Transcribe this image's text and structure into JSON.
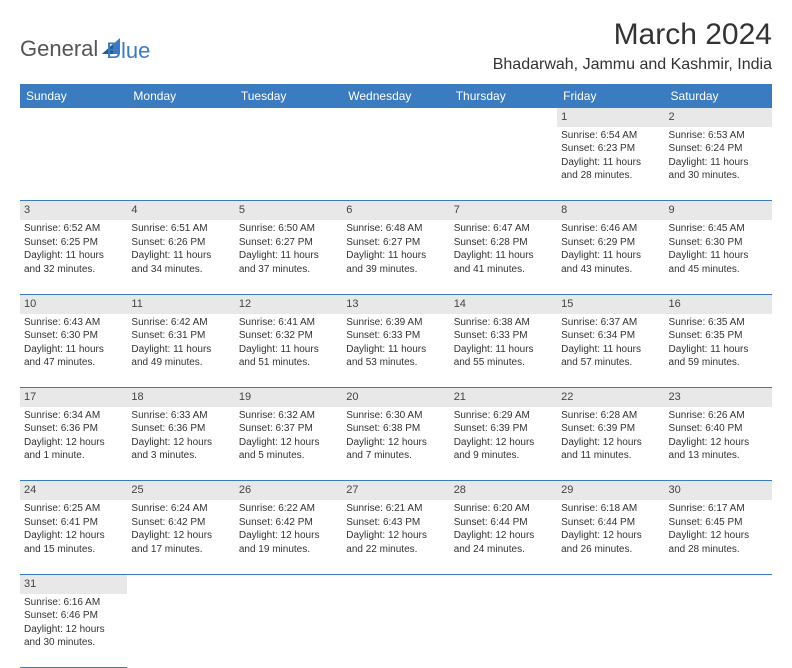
{
  "logo": {
    "text1": "General",
    "text2": "Blue"
  },
  "title": "March 2024",
  "location": "Bhadarwah, Jammu and Kashmir, India",
  "colors": {
    "headerBg": "#3b7bbf",
    "headerText": "#ffffff",
    "dayNumBg": "#e8e8e8",
    "rowBorder": "#3b7bbf",
    "bodyText": "#333333"
  },
  "dayHeaders": [
    "Sunday",
    "Monday",
    "Tuesday",
    "Wednesday",
    "Thursday",
    "Friday",
    "Saturday"
  ],
  "weeks": [
    [
      null,
      null,
      null,
      null,
      null,
      {
        "n": "1",
        "sr": "Sunrise: 6:54 AM",
        "ss": "Sunset: 6:23 PM",
        "d1": "Daylight: 11 hours",
        "d2": "and 28 minutes."
      },
      {
        "n": "2",
        "sr": "Sunrise: 6:53 AM",
        "ss": "Sunset: 6:24 PM",
        "d1": "Daylight: 11 hours",
        "d2": "and 30 minutes."
      }
    ],
    [
      {
        "n": "3",
        "sr": "Sunrise: 6:52 AM",
        "ss": "Sunset: 6:25 PM",
        "d1": "Daylight: 11 hours",
        "d2": "and 32 minutes."
      },
      {
        "n": "4",
        "sr": "Sunrise: 6:51 AM",
        "ss": "Sunset: 6:26 PM",
        "d1": "Daylight: 11 hours",
        "d2": "and 34 minutes."
      },
      {
        "n": "5",
        "sr": "Sunrise: 6:50 AM",
        "ss": "Sunset: 6:27 PM",
        "d1": "Daylight: 11 hours",
        "d2": "and 37 minutes."
      },
      {
        "n": "6",
        "sr": "Sunrise: 6:48 AM",
        "ss": "Sunset: 6:27 PM",
        "d1": "Daylight: 11 hours",
        "d2": "and 39 minutes."
      },
      {
        "n": "7",
        "sr": "Sunrise: 6:47 AM",
        "ss": "Sunset: 6:28 PM",
        "d1": "Daylight: 11 hours",
        "d2": "and 41 minutes."
      },
      {
        "n": "8",
        "sr": "Sunrise: 6:46 AM",
        "ss": "Sunset: 6:29 PM",
        "d1": "Daylight: 11 hours",
        "d2": "and 43 minutes."
      },
      {
        "n": "9",
        "sr": "Sunrise: 6:45 AM",
        "ss": "Sunset: 6:30 PM",
        "d1": "Daylight: 11 hours",
        "d2": "and 45 minutes."
      }
    ],
    [
      {
        "n": "10",
        "sr": "Sunrise: 6:43 AM",
        "ss": "Sunset: 6:30 PM",
        "d1": "Daylight: 11 hours",
        "d2": "and 47 minutes."
      },
      {
        "n": "11",
        "sr": "Sunrise: 6:42 AM",
        "ss": "Sunset: 6:31 PM",
        "d1": "Daylight: 11 hours",
        "d2": "and 49 minutes."
      },
      {
        "n": "12",
        "sr": "Sunrise: 6:41 AM",
        "ss": "Sunset: 6:32 PM",
        "d1": "Daylight: 11 hours",
        "d2": "and 51 minutes."
      },
      {
        "n": "13",
        "sr": "Sunrise: 6:39 AM",
        "ss": "Sunset: 6:33 PM",
        "d1": "Daylight: 11 hours",
        "d2": "and 53 minutes."
      },
      {
        "n": "14",
        "sr": "Sunrise: 6:38 AM",
        "ss": "Sunset: 6:33 PM",
        "d1": "Daylight: 11 hours",
        "d2": "and 55 minutes."
      },
      {
        "n": "15",
        "sr": "Sunrise: 6:37 AM",
        "ss": "Sunset: 6:34 PM",
        "d1": "Daylight: 11 hours",
        "d2": "and 57 minutes."
      },
      {
        "n": "16",
        "sr": "Sunrise: 6:35 AM",
        "ss": "Sunset: 6:35 PM",
        "d1": "Daylight: 11 hours",
        "d2": "and 59 minutes."
      }
    ],
    [
      {
        "n": "17",
        "sr": "Sunrise: 6:34 AM",
        "ss": "Sunset: 6:36 PM",
        "d1": "Daylight: 12 hours",
        "d2": "and 1 minute."
      },
      {
        "n": "18",
        "sr": "Sunrise: 6:33 AM",
        "ss": "Sunset: 6:36 PM",
        "d1": "Daylight: 12 hours",
        "d2": "and 3 minutes."
      },
      {
        "n": "19",
        "sr": "Sunrise: 6:32 AM",
        "ss": "Sunset: 6:37 PM",
        "d1": "Daylight: 12 hours",
        "d2": "and 5 minutes."
      },
      {
        "n": "20",
        "sr": "Sunrise: 6:30 AM",
        "ss": "Sunset: 6:38 PM",
        "d1": "Daylight: 12 hours",
        "d2": "and 7 minutes."
      },
      {
        "n": "21",
        "sr": "Sunrise: 6:29 AM",
        "ss": "Sunset: 6:39 PM",
        "d1": "Daylight: 12 hours",
        "d2": "and 9 minutes."
      },
      {
        "n": "22",
        "sr": "Sunrise: 6:28 AM",
        "ss": "Sunset: 6:39 PM",
        "d1": "Daylight: 12 hours",
        "d2": "and 11 minutes."
      },
      {
        "n": "23",
        "sr": "Sunrise: 6:26 AM",
        "ss": "Sunset: 6:40 PM",
        "d1": "Daylight: 12 hours",
        "d2": "and 13 minutes."
      }
    ],
    [
      {
        "n": "24",
        "sr": "Sunrise: 6:25 AM",
        "ss": "Sunset: 6:41 PM",
        "d1": "Daylight: 12 hours",
        "d2": "and 15 minutes."
      },
      {
        "n": "25",
        "sr": "Sunrise: 6:24 AM",
        "ss": "Sunset: 6:42 PM",
        "d1": "Daylight: 12 hours",
        "d2": "and 17 minutes."
      },
      {
        "n": "26",
        "sr": "Sunrise: 6:22 AM",
        "ss": "Sunset: 6:42 PM",
        "d1": "Daylight: 12 hours",
        "d2": "and 19 minutes."
      },
      {
        "n": "27",
        "sr": "Sunrise: 6:21 AM",
        "ss": "Sunset: 6:43 PM",
        "d1": "Daylight: 12 hours",
        "d2": "and 22 minutes."
      },
      {
        "n": "28",
        "sr": "Sunrise: 6:20 AM",
        "ss": "Sunset: 6:44 PM",
        "d1": "Daylight: 12 hours",
        "d2": "and 24 minutes."
      },
      {
        "n": "29",
        "sr": "Sunrise: 6:18 AM",
        "ss": "Sunset: 6:44 PM",
        "d1": "Daylight: 12 hours",
        "d2": "and 26 minutes."
      },
      {
        "n": "30",
        "sr": "Sunrise: 6:17 AM",
        "ss": "Sunset: 6:45 PM",
        "d1": "Daylight: 12 hours",
        "d2": "and 28 minutes."
      }
    ],
    [
      {
        "n": "31",
        "sr": "Sunrise: 6:16 AM",
        "ss": "Sunset: 6:46 PM",
        "d1": "Daylight: 12 hours",
        "d2": "and 30 minutes."
      },
      null,
      null,
      null,
      null,
      null,
      null
    ]
  ]
}
